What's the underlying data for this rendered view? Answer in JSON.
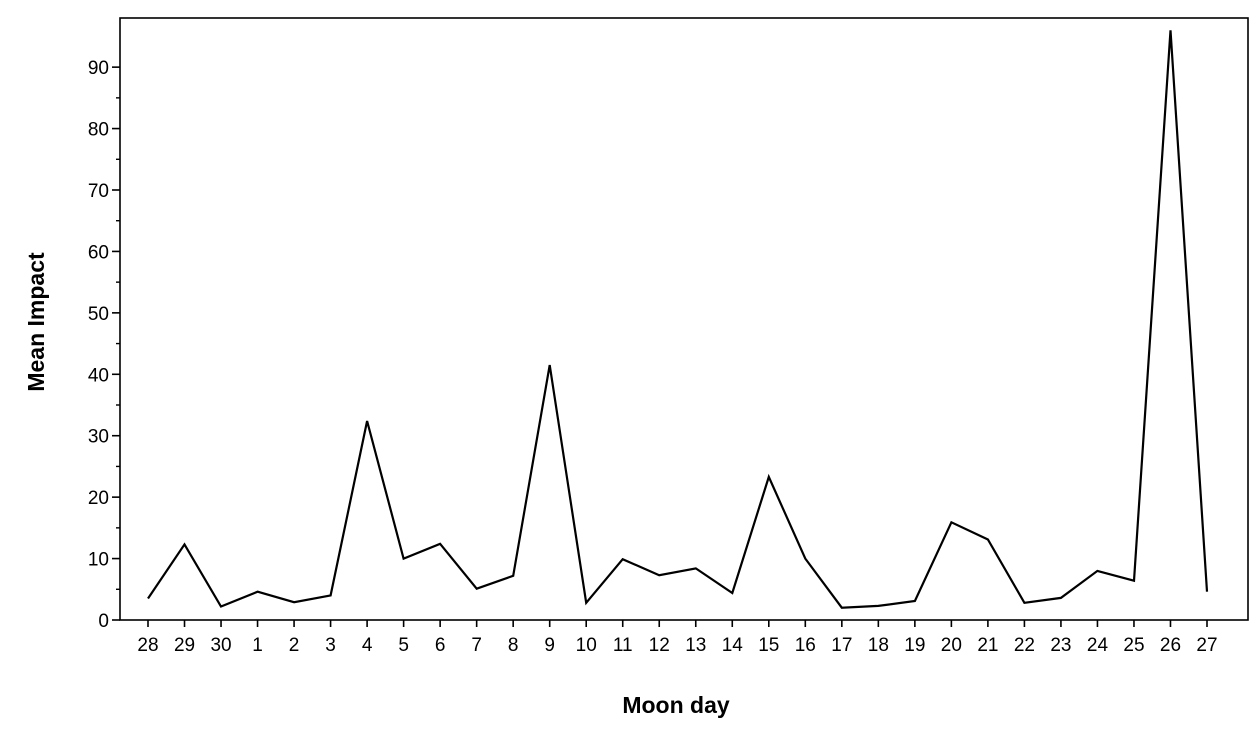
{
  "chart_data": {
    "type": "line",
    "title": "",
    "xlabel": "Moon day",
    "ylabel": "Mean Impact",
    "categories": [
      "28",
      "29",
      "30",
      "1",
      "2",
      "3",
      "4",
      "5",
      "6",
      "7",
      "8",
      "9",
      "10",
      "11",
      "12",
      "13",
      "14",
      "15",
      "16",
      "17",
      "18",
      "19",
      "20",
      "21",
      "22",
      "23",
      "24",
      "25",
      "26",
      "27"
    ],
    "series": [
      {
        "values": [
          3.5,
          12.3,
          2.2,
          4.6,
          2.9,
          4.0,
          32.4,
          10.0,
          12.4,
          5.1,
          7.2,
          41.5,
          2.8,
          9.9,
          7.3,
          8.4,
          4.4,
          23.3,
          10.0,
          2.0,
          2.3,
          3.1,
          15.9,
          13.1,
          2.8,
          3.6,
          8.0,
          6.4,
          96.0,
          4.6
        ],
        "color": "#000000"
      }
    ],
    "ylim": [
      0,
      98
    ],
    "yticks": [
      0,
      10,
      20,
      30,
      40,
      50,
      60,
      70,
      80,
      90
    ],
    "grid": false,
    "legend": "none"
  }
}
